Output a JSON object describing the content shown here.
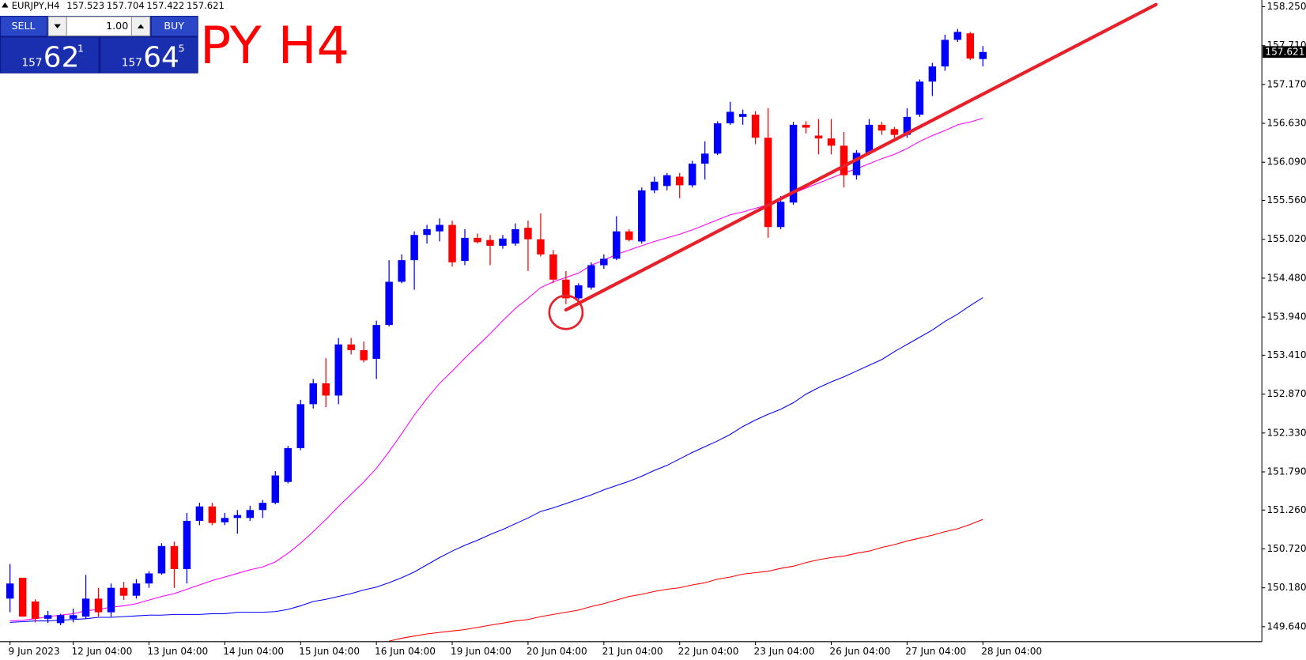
{
  "chart_data": {
    "type": "candlestick",
    "symbol": "EURJPY,H4",
    "watermark": "PY H4",
    "up_color": "#0000ff",
    "down_color": "#ff0000",
    "categories": [
      "9 Jun 2023",
      null,
      null,
      null,
      null,
      "12 Jun 04:00",
      null,
      null,
      null,
      null,
      null,
      "13 Jun 04:00",
      null,
      null,
      null,
      null,
      null,
      "14 Jun 04:00",
      null,
      null,
      null,
      null,
      null,
      "15 Jun 04:00",
      null,
      null,
      null,
      null,
      null,
      "16 Jun 04:00",
      null,
      null,
      null,
      null,
      null,
      "19 Jun 04:00",
      null,
      null,
      null,
      null,
      null,
      "20 Jun 04:00",
      null,
      null,
      null,
      null,
      null,
      "21 Jun 04:00",
      null,
      null,
      null,
      null,
      null,
      "22 Jun 04:00",
      null,
      null,
      null,
      null,
      null,
      "23 Jun 04:00",
      null,
      null,
      null,
      null,
      null,
      "26 Jun 04:00",
      null,
      null,
      null,
      null,
      null,
      "27 Jun 04:00",
      null,
      null,
      null,
      null,
      null,
      "28 Jun 04:00"
    ],
    "open": [
      150.03,
      150.32,
      149.99,
      149.75,
      149.69,
      149.75,
      149.78,
      150.03,
      149.84,
      150.18,
      150.07,
      150.24,
      150.38,
      150.76,
      150.44,
      151.11,
      151.31,
      151.09,
      151.15,
      151.15,
      151.26,
      151.36,
      151.65,
      152.12,
      152.73,
      153.02,
      152.85,
      153.56,
      153.48,
      153.36,
      153.83,
      154.43,
      154.73,
      155.08,
      155.13,
      155.22,
      154.72,
      155.04,
      155.01,
      154.93,
      154.96,
      155.18,
      155.02,
      154.81,
      154.46,
      154.2,
      154.35,
      154.66,
      154.75,
      155.13,
      154.99,
      155.7,
      155.76,
      155.89,
      155.77,
      156.07,
      156.21,
      156.63,
      156.72,
      156.75,
      156.43,
      155.19,
      155.53,
      156.61,
      156.46,
      156.42,
      156.32,
      155.91,
      156.22,
      156.61,
      156.55,
      156.47,
      156.75,
      157.21,
      157.42,
      157.79,
      157.88,
      157.523
    ],
    "high": [
      150.51,
      150.32,
      150.02,
      149.86,
      149.82,
      149.89,
      150.36,
      150.18,
      150.24,
      150.26,
      150.3,
      150.41,
      150.8,
      150.82,
      151.22,
      151.36,
      151.36,
      151.22,
      151.26,
      151.32,
      151.4,
      151.8,
      152.15,
      152.79,
      153.08,
      153.37,
      153.65,
      153.65,
      153.6,
      153.89,
      154.73,
      154.81,
      155.13,
      155.22,
      155.31,
      155.28,
      155.16,
      155.1,
      155.08,
      155.08,
      155.24,
      155.28,
      155.38,
      154.87,
      154.58,
      154.41,
      154.7,
      154.81,
      155.34,
      155.16,
      155.74,
      155.89,
      155.94,
      155.94,
      156.11,
      156.38,
      156.66,
      156.93,
      156.82,
      156.8,
      156.84,
      155.62,
      156.65,
      156.66,
      156.69,
      156.69,
      156.51,
      156.26,
      156.69,
      156.65,
      156.58,
      156.84,
      157.24,
      157.47,
      157.86,
      157.94,
      157.9,
      157.704
    ],
    "low": [
      149.84,
      149.78,
      149.7,
      149.69,
      149.66,
      149.7,
      149.75,
      149.78,
      149.78,
      150.01,
      150.03,
      150.18,
      150.36,
      150.18,
      150.24,
      151.05,
      151.05,
      151.05,
      150.93,
      151.11,
      151.15,
      151.34,
      151.63,
      152.09,
      152.67,
      152.69,
      152.73,
      153.42,
      153.31,
      153.08,
      153.81,
      154.41,
      154.32,
      154.96,
      154.99,
      154.64,
      154.66,
      154.96,
      154.66,
      154.89,
      154.93,
      154.58,
      154.78,
      154.41,
      154.12,
      154.15,
      154.32,
      154.61,
      154.73,
      154.99,
      154.96,
      155.66,
      155.7,
      155.59,
      155.74,
      155.85,
      156.19,
      156.61,
      156.61,
      156.34,
      155.04,
      155.16,
      155.5,
      156.49,
      156.2,
      156.2,
      155.74,
      155.85,
      156.19,
      156.47,
      156.43,
      156.43,
      156.72,
      157.01,
      157.36,
      157.76,
      157.51,
      157.422
    ],
    "close": [
      150.24,
      149.78,
      149.75,
      149.8,
      149.8,
      149.8,
      150.03,
      149.84,
      150.18,
      150.07,
      150.24,
      150.38,
      150.76,
      150.44,
      151.11,
      151.31,
      151.08,
      151.15,
      151.19,
      151.26,
      151.36,
      151.74,
      152.12,
      152.73,
      153.02,
      152.85,
      153.56,
      153.48,
      153.34,
      153.83,
      154.43,
      154.73,
      155.08,
      155.16,
      155.22,
      154.7,
      155.04,
      154.98,
      154.93,
      155.03,
      155.16,
      155.02,
      154.81,
      154.46,
      154.2,
      154.38,
      154.66,
      154.75,
      155.13,
      155.01,
      155.7,
      155.82,
      155.91,
      155.77,
      156.07,
      156.21,
      156.63,
      156.79,
      156.76,
      156.43,
      155.19,
      155.54,
      156.61,
      156.57,
      156.42,
      156.32,
      155.91,
      156.22,
      156.61,
      156.53,
      156.47,
      156.72,
      157.21,
      157.42,
      157.79,
      157.9,
      157.53,
      157.621
    ],
    "moving_averages": [
      {
        "color": "#ff00ff",
        "values": [
          149.72,
          149.73,
          149.75,
          149.78,
          149.8,
          149.82,
          149.86,
          149.88,
          149.91,
          149.93,
          149.96,
          150.01,
          150.06,
          150.1,
          150.16,
          150.22,
          150.28,
          150.33,
          150.38,
          150.43,
          150.47,
          150.54,
          150.66,
          150.8,
          150.96,
          151.13,
          151.31,
          151.48,
          151.65,
          151.84,
          152.07,
          152.32,
          152.58,
          152.81,
          153.02,
          153.19,
          153.37,
          153.54,
          153.71,
          153.89,
          154.06,
          154.2,
          154.35,
          154.43,
          154.49,
          154.55,
          154.66,
          154.73,
          154.81,
          154.87,
          154.93,
          154.99,
          155.04,
          155.09,
          155.15,
          155.22,
          155.29,
          155.36,
          155.4,
          155.45,
          155.5,
          155.57,
          155.66,
          155.73,
          155.8,
          155.87,
          155.94,
          156.0,
          156.07,
          156.14,
          156.2,
          156.28,
          156.38,
          156.46,
          156.53,
          156.61,
          156.65,
          156.7
        ]
      },
      {
        "color": "#0000ff",
        "values": [
          149.7,
          149.71,
          149.72,
          149.72,
          149.73,
          149.74,
          149.75,
          149.77,
          149.77,
          149.78,
          149.79,
          149.8,
          149.8,
          149.81,
          149.81,
          149.81,
          149.82,
          149.82,
          149.84,
          149.84,
          149.84,
          149.85,
          149.88,
          149.93,
          149.99,
          150.02,
          150.06,
          150.1,
          150.15,
          150.19,
          150.25,
          150.32,
          150.4,
          150.5,
          150.6,
          150.69,
          150.77,
          150.84,
          150.92,
          150.99,
          151.07,
          151.15,
          151.24,
          151.29,
          151.35,
          151.41,
          151.47,
          151.54,
          151.6,
          151.66,
          151.73,
          151.81,
          151.88,
          151.97,
          152.06,
          152.14,
          152.22,
          152.31,
          152.42,
          152.51,
          152.59,
          152.66,
          152.75,
          152.87,
          152.96,
          153.04,
          153.11,
          153.19,
          153.27,
          153.35,
          153.46,
          153.56,
          153.66,
          153.76,
          153.88,
          153.98,
          154.1,
          154.21
        ]
      },
      {
        "color": "#ff0000",
        "values": [
          null,
          null,
          null,
          null,
          null,
          null,
          null,
          null,
          null,
          null,
          null,
          null,
          null,
          null,
          null,
          null,
          null,
          null,
          null,
          null,
          null,
          null,
          null,
          null,
          null,
          null,
          null,
          null,
          null,
          null,
          149.44,
          149.48,
          149.51,
          149.54,
          149.56,
          149.58,
          149.6,
          149.63,
          149.66,
          149.69,
          149.72,
          149.74,
          149.78,
          149.81,
          149.84,
          149.87,
          149.92,
          149.96,
          150.01,
          150.06,
          150.09,
          150.13,
          150.16,
          150.18,
          150.22,
          150.25,
          150.3,
          150.33,
          150.37,
          150.39,
          150.41,
          150.45,
          150.48,
          150.53,
          150.57,
          150.6,
          150.62,
          150.66,
          150.69,
          150.74,
          150.78,
          150.83,
          150.87,
          150.91,
          150.96,
          151.0,
          151.06,
          151.13
        ]
      }
    ],
    "trendline": {
      "color": "#e8202a",
      "x": [
        44,
        90.7
      ],
      "y": [
        154.04,
        158.28
      ]
    },
    "ylim": [
      149.432,
      158.343
    ],
    "yticks": [
      {
        "value": 158.25,
        "label": "158.250"
      },
      {
        "value": 157.71,
        "label": "157.710"
      },
      {
        "value": 157.17,
        "label": "157.170"
      },
      {
        "value": 156.63,
        "label": "156.630"
      },
      {
        "value": 156.09,
        "label": "156.090"
      },
      {
        "value": 155.56,
        "label": "155.560"
      },
      {
        "value": 155.02,
        "label": "155.020"
      },
      {
        "value": 154.48,
        "label": "154.480"
      },
      {
        "value": 153.94,
        "label": "153.940"
      },
      {
        "value": 153.41,
        "label": "153.410"
      },
      {
        "value": 152.87,
        "label": "152.870"
      },
      {
        "value": 152.33,
        "label": "152.330"
      },
      {
        "value": 151.79,
        "label": "151.790"
      },
      {
        "value": 151.26,
        "label": "151.260"
      },
      {
        "value": 150.72,
        "label": "150.720"
      },
      {
        "value": 150.18,
        "label": "150.180"
      },
      {
        "value": 149.64,
        "label": "149.640"
      }
    ],
    "grid": false,
    "trade_panel": {
      "sell_label": "SELL",
      "buy_label": "BUY",
      "lot": "1.00",
      "bid": {
        "prefix": "157",
        "big": "62",
        "sup": "1"
      },
      "ask": {
        "prefix": "157",
        "big": "64",
        "sup": "5"
      }
    }
  }
}
